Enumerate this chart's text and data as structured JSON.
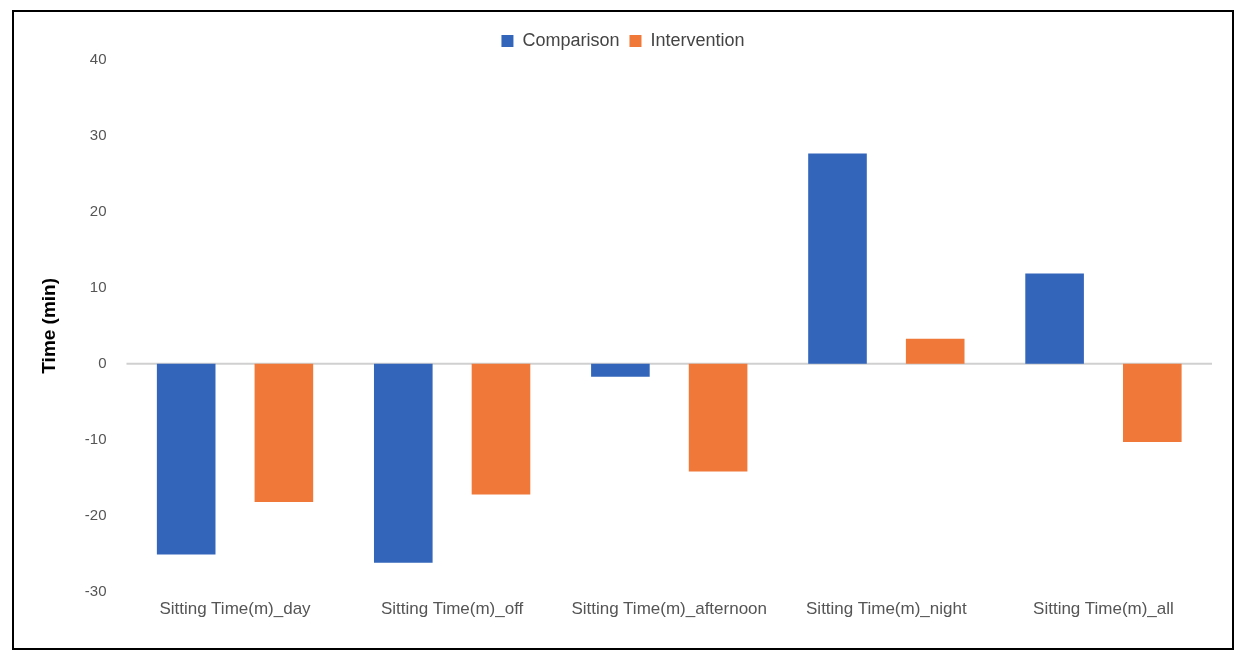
{
  "chart_data": {
    "type": "bar",
    "ylabel": "Time (min)",
    "categories": [
      "Sitting Time(m)_day",
      "Sitting Time(m)_off",
      "Sitting Time(m)_afternoon",
      "Sitting Time(m)_night",
      "Sitting Time(m)_all"
    ],
    "series": [
      {
        "name": "Comparison",
        "color": "#3366bb",
        "values": [
          -25.1,
          -26.2,
          -1.7,
          27.7,
          11.9
        ]
      },
      {
        "name": "Intervention",
        "color": "#f07838",
        "values": [
          -18.2,
          -17.2,
          -14.2,
          3.3,
          -10.3
        ]
      }
    ],
    "ylim": [
      -30,
      40
    ],
    "yticks": [
      -30,
      -20,
      -10,
      0,
      10,
      20,
      30,
      40
    ],
    "grid": false,
    "ref_lines": [
      {
        "axis": "y",
        "value": 0,
        "color": "#d0d0d0"
      }
    ],
    "legend": "top"
  }
}
